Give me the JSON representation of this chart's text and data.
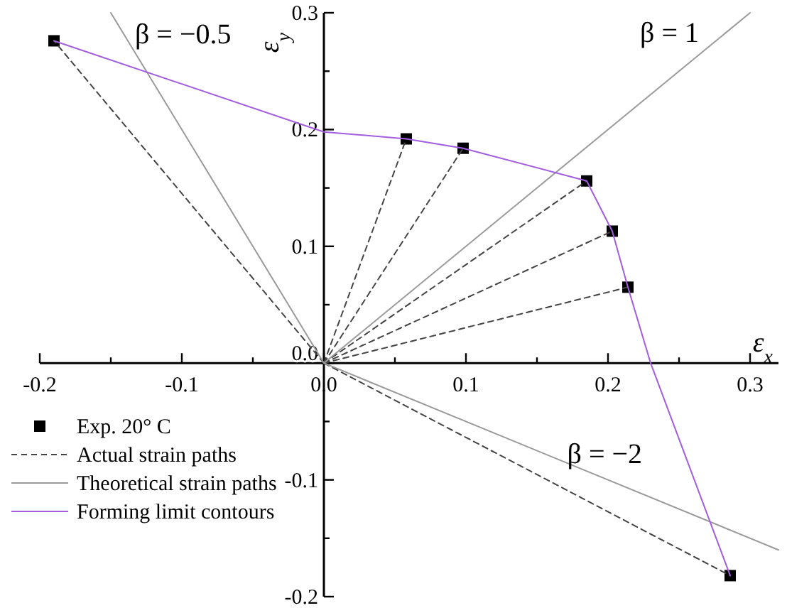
{
  "chart_data": {
    "type": "line",
    "xlabel": "ε$_{x}$",
    "ylabel": "ε$_{y}$",
    "xlim": [
      -0.2,
      0.32
    ],
    "ylim": [
      -0.2,
      0.3
    ],
    "xticks": [
      -0.2,
      {
        "value": -0.15,
        "label": null
      },
      -0.1,
      {
        "value": -0.05,
        "label": null
      },
      {
        "value": 0,
        "label": "0.0"
      },
      {
        "value": 0.05,
        "label": null
      },
      0.1,
      {
        "value": 0.15,
        "label": null
      },
      0.2,
      {
        "value": 0.25,
        "label": null
      },
      0.3
    ],
    "yticks": [
      -0.2,
      {
        "value": -0.15,
        "label": null
      },
      -0.1,
      {
        "value": -0.05,
        "label": null
      },
      {
        "value": 0,
        "label": "0.0"
      },
      {
        "value": 0.05,
        "label": null
      },
      0.1,
      {
        "value": 0.15,
        "label": null
      },
      0.2,
      {
        "value": 0.25,
        "label": null
      },
      0.3
    ],
    "grid": false,
    "legend": "bottom left",
    "series": [
      {
        "name": "Exp. 20° C",
        "type": "scatter",
        "marker": "square",
        "color": "#000000",
        "x": [
          -0.19,
          0.058,
          0.098,
          0.185,
          0.203,
          0.214,
          0.286
        ],
        "values": [
          0.276,
          0.192,
          0.184,
          0.156,
          0.113,
          0.065,
          -0.182
        ]
      },
      {
        "name": "Actual strain paths",
        "line_style": "dashed",
        "color": "#444444",
        "x": [
          0,
          -0.19,
          null,
          0,
          0.058,
          null,
          0,
          0.098,
          null,
          0,
          0.185,
          null,
          0,
          0.203,
          null,
          0,
          0.214,
          null,
          0,
          0.286
        ],
        "values": [
          0,
          0.276,
          null,
          0,
          0.192,
          null,
          0,
          0.184,
          null,
          0,
          0.156,
          null,
          0,
          0.113,
          null,
          0,
          0.065,
          null,
          0,
          -0.182
        ]
      },
      {
        "name": "Theoretical strain paths",
        "line_style": "solid",
        "color": "#9a9a9a",
        "x": [
          -0.15,
          0,
          null,
          0,
          0.3,
          null,
          0,
          0.32
        ],
        "values": [
          0.3,
          0,
          null,
          0,
          0.3,
          null,
          0,
          -0.16
        ]
      },
      {
        "name": "Forming limit contours",
        "line_style": "solid",
        "color": "#a25de0",
        "x": [
          -0.19,
          0,
          0.058,
          0.098,
          0.185,
          0.203,
          0.214,
          0.23,
          0.286
        ],
        "values": [
          0.276,
          0.198,
          0.192,
          0.184,
          0.156,
          0.113,
          0.065,
          0,
          -0.182
        ]
      }
    ],
    "annotations": [
      {
        "text": "β = −0.5",
        "x": -0.135,
        "y": 0.27
      },
      {
        "text": "β = 1",
        "x": 0.27,
        "y": 0.27
      },
      {
        "text": "β = −2",
        "x": 0.22,
        "y": -0.11
      }
    ]
  }
}
